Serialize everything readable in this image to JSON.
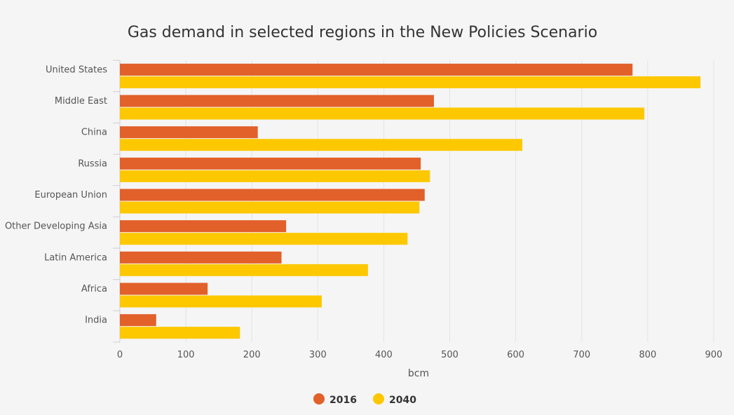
{
  "chart_data": {
    "type": "bar",
    "orientation": "horizontal",
    "title": "Gas demand in selected regions in the New Policies Scenario",
    "xlabel": "bcm",
    "ylabel": "",
    "xlim": [
      0,
      900
    ],
    "xticks": [
      "0",
      "100",
      "200",
      "300",
      "400",
      "500",
      "600",
      "700",
      "800",
      "900"
    ],
    "xtick_values": [
      0,
      100,
      200,
      300,
      400,
      500,
      600,
      700,
      800,
      900
    ],
    "categories": [
      "United States",
      "Middle East",
      "China",
      "Russia",
      "European Union",
      "Other Developing Asia",
      "Latin America",
      "Africa",
      "India"
    ],
    "series": [
      {
        "name": "2016",
        "color": "#e2602a",
        "values": [
          777,
          476,
          209,
          456,
          462,
          252,
          245,
          133,
          55
        ]
      },
      {
        "name": "2040",
        "color": "#fdc800",
        "values": [
          880,
          795,
          610,
          470,
          454,
          436,
          376,
          306,
          182
        ]
      }
    ],
    "legend_position": "bottom-center",
    "grid": true
  }
}
